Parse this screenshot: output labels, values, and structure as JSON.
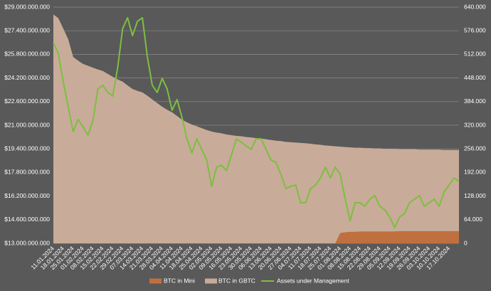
{
  "chart_data": {
    "type": "area",
    "stacked": true,
    "categories": [
      "11.01.2024",
      null,
      "18.01.2024",
      null,
      "25.01.2024",
      null,
      "01.02.2024",
      null,
      "08.02.2024",
      null,
      "15.02.2024",
      null,
      "22.02.2024",
      null,
      "29.02.2024",
      null,
      "07.03.2024",
      null,
      "14.03.2024",
      null,
      "21.03.2024",
      null,
      "28.03.2024",
      null,
      "04.04.2024",
      null,
      "11.04.2024",
      null,
      "18.04.2024",
      null,
      "25.04.2024",
      null,
      "02.05.2024",
      null,
      "09.05.2024",
      null,
      "16.05.2024",
      null,
      "23.05.2024",
      null,
      "30.05.2024",
      null,
      "06.06.2024",
      null,
      "13.06.2024",
      null,
      "20.06.2024",
      null,
      "27.06.2024",
      null,
      "04.07.2024",
      null,
      "11.07.2024",
      null,
      "18.07.2024",
      null,
      "25.07.2024",
      null,
      "01.08.2024",
      null,
      "08.08.2024",
      null,
      "15.08.2024",
      null,
      "22.08.2024",
      null,
      "29.08.2024",
      null,
      "05.09.2024",
      null,
      "12.09.2024",
      null,
      "19.09.2024",
      null,
      "26.09.2024",
      null,
      "03.10.2024",
      null,
      "10.10.2024",
      null,
      "17.10.2024",
      null,
      null
    ],
    "series": [
      {
        "name": "BTC in Mini",
        "color": "#c0703f",
        "axis": "y2",
        "values": [
          0,
          0,
          0,
          0,
          0,
          0,
          0,
          0,
          0,
          0,
          0,
          0,
          0,
          0,
          0,
          0,
          0,
          0,
          0,
          0,
          0,
          0,
          0,
          0,
          0,
          0,
          0,
          0,
          0,
          0,
          0,
          0,
          0,
          0,
          0,
          0,
          0,
          0,
          0,
          0,
          0,
          0,
          0,
          0,
          0,
          0,
          0,
          0,
          0,
          0,
          0,
          0,
          0,
          0,
          0,
          0,
          0,
          0,
          28000,
          30000,
          31000,
          31000,
          32000,
          32000,
          32000,
          32000,
          32000,
          32000,
          32000,
          32000,
          33000,
          33000,
          33000,
          33000,
          33000,
          33000,
          33000,
          33000,
          33000,
          33000,
          33000,
          33000,
          33000
        ]
      },
      {
        "name": "BTC in GBTC",
        "color": "#c9ab99",
        "axis": "y2",
        "values": [
          620000,
          610000,
          582000,
          553000,
          505000,
          495000,
          486000,
          481000,
          476000,
          471000,
          467000,
          459000,
          451000,
          444000,
          438000,
          428000,
          418000,
          413000,
          409000,
          400000,
          390000,
          380000,
          370000,
          362000,
          355000,
          345000,
          335000,
          328000,
          322000,
          317000,
          312000,
          307000,
          303000,
          300000,
          298000,
          295000,
          293000,
          291000,
          290000,
          288000,
          287000,
          285000,
          284000,
          282000,
          280000,
          278000,
          277000,
          275000,
          274000,
          273000,
          272000,
          271000,
          270000,
          268000,
          267000,
          265000,
          264000,
          263000,
          234000,
          231000,
          229000,
          228000,
          227000,
          226000,
          226000,
          225000,
          225000,
          224000,
          224000,
          224000,
          222000,
          222000,
          222000,
          222000,
          221000,
          221000,
          221000,
          221000,
          221000,
          220000,
          220000,
          220000,
          220000
        ]
      },
      {
        "name": "Assets under Management",
        "color": "#7cbf3f",
        "type": "line",
        "values": [
          26590000000,
          25870000000,
          23940000000,
          22250000000,
          20570000000,
          21390000000,
          20900000000,
          20330000000,
          21290000000,
          23460000000,
          23700000000,
          23220000000,
          22980000000,
          24900000000,
          27550000000,
          28280000000,
          27070000000,
          28040000000,
          28280000000,
          25630000000,
          23700000000,
          23220000000,
          24180000000,
          23460000000,
          22010000000,
          22730000000,
          21530000000,
          20080000000,
          19120000000,
          20080000000,
          19360000000,
          18640000000,
          16860000000,
          18160000000,
          18300000000,
          17920000000,
          18980000000,
          20080000000,
          19840000000,
          19600000000,
          19360000000,
          20080000000,
          20080000000,
          19360000000,
          18640000000,
          18490000000,
          17670000000,
          16710000000,
          16860000000,
          16950000000,
          15750000000,
          15750000000,
          16710000000,
          16950000000,
          17430000000,
          18160000000,
          17430000000,
          18160000000,
          17670000000,
          15990000000,
          14540000000,
          15750000000,
          15750000000,
          15510000000,
          15990000000,
          16230000000,
          15510000000,
          15270000000,
          14780000000,
          14060000000,
          14780000000,
          15020000000,
          15750000000,
          15990000000,
          16230000000,
          15510000000,
          15750000000,
          15990000000,
          15510000000,
          16470000000,
          16950000000,
          17430000000,
          17190000000
        ]
      }
    ],
    "ylim": [
      13000000000,
      29000000000
    ],
    "yticks": [
      {
        "value": 13000000000,
        "label": "$13.000.000.000"
      },
      {
        "value": 14600000000,
        "label": "$14.600.000.000"
      },
      {
        "value": 16200000000,
        "label": "$16.200.000.000"
      },
      {
        "value": 17800000000,
        "label": "$17.800.000.000"
      },
      {
        "value": 19400000000,
        "label": "$19.400.000.000"
      },
      {
        "value": 21000000000,
        "label": "$21.000.000.000"
      },
      {
        "value": 22600000000,
        "label": "$22.600.000.000"
      },
      {
        "value": 24200000000,
        "label": "$24.200.000.000"
      },
      {
        "value": 25800000000,
        "label": "$25.800.000.000"
      },
      {
        "value": 27400000000,
        "label": "$27.400.000.000"
      },
      {
        "value": 29000000000,
        "label": "$29.000.000.000"
      }
    ],
    "y2lim": [
      0,
      640000
    ],
    "y2ticks": [
      0,
      {
        "value": 64000,
        "label": "64.000"
      },
      {
        "value": 128000,
        "label": "128.000"
      },
      {
        "value": 192000,
        "label": "192.000"
      },
      {
        "value": 256000,
        "label": "256.000"
      },
      {
        "value": 320000,
        "label": "320.000"
      },
      {
        "value": 384000,
        "label": "384.000"
      },
      {
        "value": 448000,
        "label": "448.000"
      },
      {
        "value": 512000,
        "label": "512.000"
      },
      {
        "value": 576000,
        "label": "576.000"
      },
      {
        "value": 640000,
        "label": "640.000"
      }
    ],
    "grid": true,
    "legend": "bottom"
  }
}
